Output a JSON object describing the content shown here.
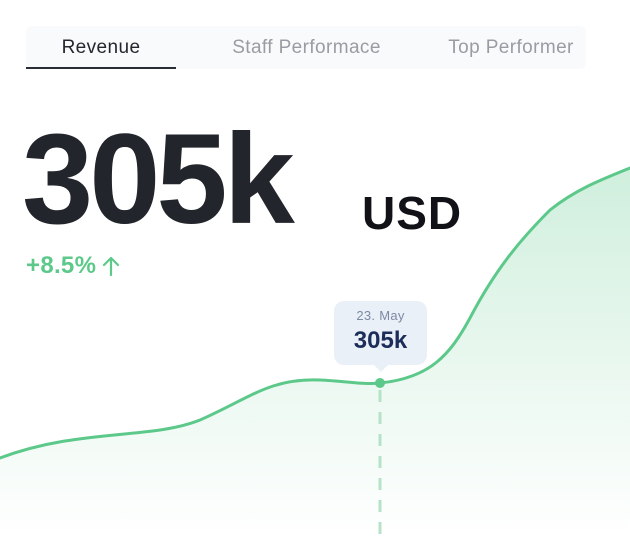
{
  "tabs": [
    {
      "label": "Revenue",
      "active": true
    },
    {
      "label": "Staff Performace",
      "active": false
    },
    {
      "label": "Top Performer",
      "active": false
    }
  ],
  "metric": {
    "value": "305k",
    "currency": "USD",
    "change": "+8.5%",
    "change_direction": "up",
    "change_color": "#5cc98a"
  },
  "tooltip": {
    "date": "23. May",
    "value": "305k"
  },
  "icons": {
    "change_arrow": "arrow-up-icon"
  },
  "colors": {
    "line": "#5cc98a",
    "area_top": "#cdeedb",
    "tooltip_bg": "#eaf0f8",
    "tooltip_value": "#1d2d5a"
  }
}
